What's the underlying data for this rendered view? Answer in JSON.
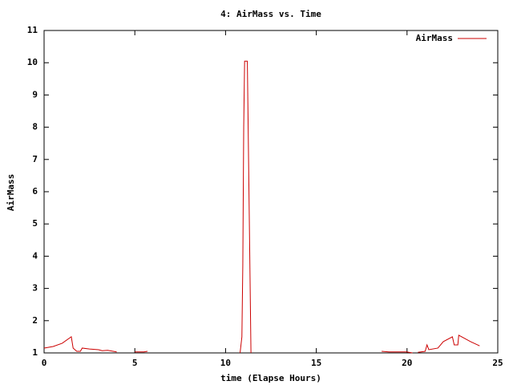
{
  "chart_data": {
    "type": "line",
    "title": "4: AirMass vs. Time",
    "x_label": "time (Elapse Hours)",
    "y_label": "AirMass",
    "x": [
      0,
      0.5,
      1.0,
      1.5,
      1.6,
      1.8,
      2.0,
      2.1,
      2.5,
      3.0,
      3.2,
      3.5,
      4.0,
      null,
      5.0,
      5.5,
      5.7,
      null,
      10.8,
      10.9,
      10.95,
      11.0,
      11.05,
      11.2,
      11.25,
      11.35,
      11.4,
      null,
      18.6,
      19.0,
      20.0,
      20.3,
      null,
      20.6,
      21.0,
      21.1,
      21.2,
      21.7,
      22.0,
      22.5,
      22.6,
      22.8,
      22.85,
      23.5,
      24.0
    ],
    "series": [
      {
        "name": "AirMass",
        "color": "#cc0000",
        "values": [
          1.15,
          1.2,
          1.3,
          1.5,
          1.15,
          1.05,
          1.05,
          1.15,
          1.12,
          1.1,
          1.07,
          1.08,
          1.03,
          null,
          1.03,
          1.03,
          1.05,
          null,
          1.0,
          1.5,
          3.7,
          8.0,
          10.05,
          10.05,
          7.8,
          3.3,
          1.0,
          null,
          1.05,
          1.03,
          1.03,
          1.0,
          null,
          1.02,
          1.05,
          1.25,
          1.1,
          1.15,
          1.35,
          1.5,
          1.25,
          1.25,
          1.55,
          1.35,
          1.22
        ]
      }
    ],
    "xlim": [
      0,
      25
    ],
    "xticks": [
      0,
      5,
      10,
      15,
      20,
      25
    ],
    "ylim": [
      1,
      11
    ],
    "yticks": [
      1,
      2,
      3,
      4,
      5,
      6,
      7,
      8,
      9,
      10,
      11
    ],
    "legend": "top-right"
  }
}
